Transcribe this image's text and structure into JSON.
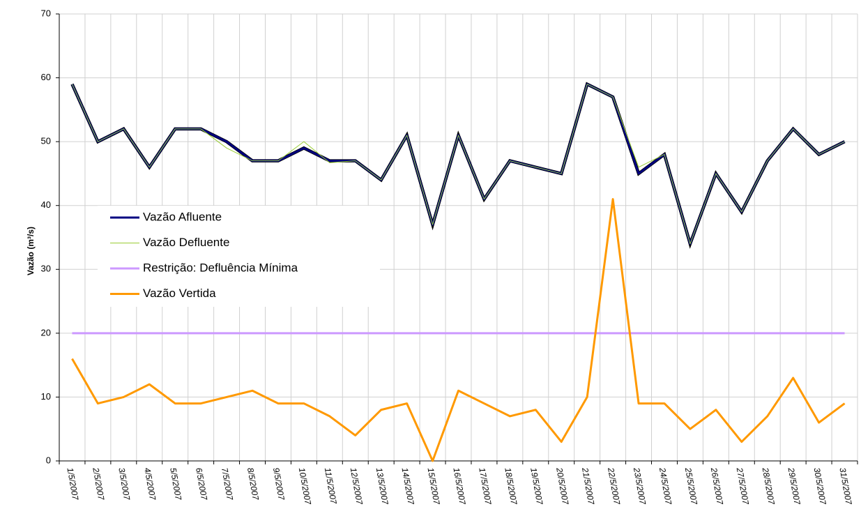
{
  "chart_data": {
    "type": "line",
    "y_label": "Vazão (m³/s)",
    "categories": [
      "1/5/2007",
      "2/5/2007",
      "3/5/2007",
      "4/5/2007",
      "5/5/2007",
      "6/5/2007",
      "7/5/2007",
      "8/5/2007",
      "9/5/2007",
      "10/5/2007",
      "11/5/2007",
      "12/5/2007",
      "13/5/2007",
      "14/5/2007",
      "15/5/2007",
      "16/5/2007",
      "17/5/2007",
      "18/5/2007",
      "19/5/2007",
      "20/5/2007",
      "21/5/2007",
      "22/5/2007",
      "23/5/2007",
      "24/5/2007",
      "25/5/2007",
      "26/5/2007",
      "27/5/2007",
      "28/5/2007",
      "29/5/2007",
      "30/5/2007",
      "31/5/2007"
    ],
    "series": [
      {
        "name": "Vazão Afluente",
        "color": "#000080",
        "values": [
          59,
          50,
          52,
          46,
          52,
          52,
          50,
          47,
          47,
          49,
          47,
          47,
          44,
          51,
          37,
          51,
          41,
          47,
          46,
          45,
          59,
          57,
          45,
          48,
          34,
          45,
          39,
          47,
          52,
          48,
          50
        ]
      },
      {
        "name": "Vazão Defluente",
        "color": "#99cc33",
        "values": [
          59,
          50,
          52,
          46,
          52,
          52,
          49,
          47,
          47,
          50,
          46.7,
          47,
          44,
          51,
          37,
          51,
          41,
          47,
          46,
          45,
          59,
          57,
          46,
          48,
          34,
          45,
          39,
          47,
          52,
          48,
          50
        ]
      },
      {
        "name": "Restrição: Defluência Mínima",
        "color": "#cc99ff",
        "values": [
          20,
          20,
          20,
          20,
          20,
          20,
          20,
          20,
          20,
          20,
          20,
          20,
          20,
          20,
          20,
          20,
          20,
          20,
          20,
          20,
          20,
          20,
          20,
          20,
          20,
          20,
          20,
          20,
          20,
          20,
          20
        ]
      },
      {
        "name": "Vazão Vertida",
        "color": "#ff9900",
        "values": [
          16,
          9,
          10,
          12,
          9,
          9,
          10,
          11,
          9,
          9,
          7,
          4,
          8,
          9,
          0,
          11,
          9,
          7,
          8,
          3,
          10,
          41,
          9,
          9,
          5,
          8,
          3,
          7,
          13,
          6,
          9
        ]
      }
    ],
    "ylim": [
      0,
      70
    ],
    "yticks": [
      0,
      10,
      20,
      30,
      40,
      50,
      60,
      70
    ],
    "grid": true,
    "legend": "left"
  }
}
